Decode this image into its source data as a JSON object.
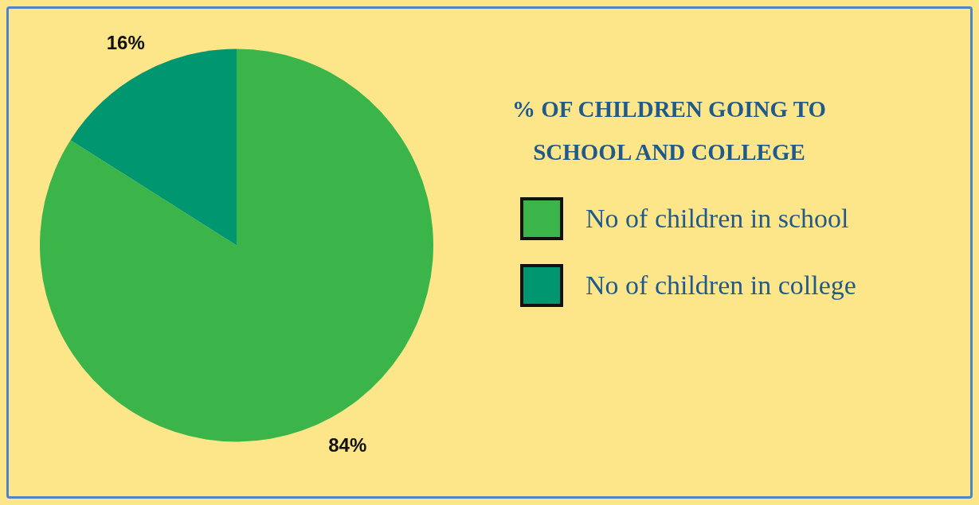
{
  "chart_data": {
    "type": "pie",
    "title": "% OF CHILDREN GOING TO SCHOOL AND COLLEGE",
    "categories": [
      "No of children in school",
      "No of children in college"
    ],
    "values": [
      84,
      16
    ],
    "colors": [
      "#3bb54a",
      "#009670"
    ],
    "value_labels": [
      "84%",
      "16%"
    ],
    "legend": "right"
  }
}
